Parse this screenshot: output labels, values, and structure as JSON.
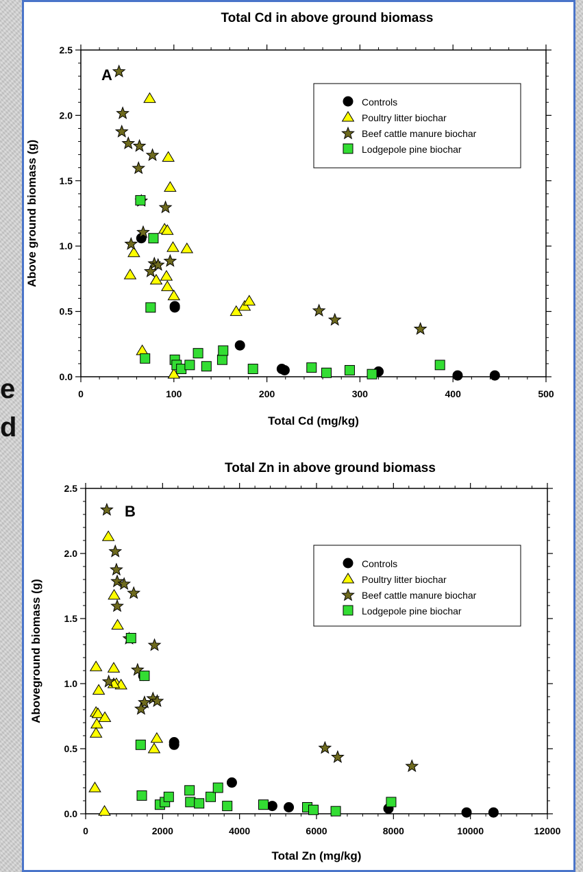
{
  "background": {
    "fragments": [
      "e",
      "d"
    ]
  },
  "legend_entries": [
    "Controls",
    "Poultry litter biochar",
    "Beef cattle manure biochar",
    "Lodgepole pine biochar"
  ],
  "colors": {
    "controls": "#000000",
    "poultry": "#ffff00",
    "beef": "#6e6a1e",
    "pine": "#33dd33",
    "frame": "#4a74c9"
  },
  "chart_data": [
    {
      "type": "scatter",
      "panel_label": "A",
      "title": "Total Cd in above ground biomass",
      "xlabel": "Total Cd (mg/kg)",
      "ylabel": "Above ground biomass (g)",
      "xlim": [
        0,
        500
      ],
      "ylim": [
        0,
        2.5
      ],
      "xticks": [
        0,
        100,
        200,
        300,
        400,
        500
      ],
      "yticks": [
        0.0,
        0.5,
        1.0,
        1.5,
        2.0,
        2.5
      ],
      "xtick_labels": [
        "0",
        "100",
        "200",
        "300",
        "400",
        "500"
      ],
      "ytick_labels": [
        "0.0",
        "0.5",
        "1.0",
        "1.5",
        "2.0",
        "2.5"
      ],
      "legend_position": "top-right",
      "series": [
        {
          "name": "Controls",
          "marker": "circle",
          "color": "#000000",
          "points": [
            [
              65,
              1.06
            ],
            [
              101,
              0.54
            ],
            [
              101,
              0.53
            ],
            [
              171,
              0.24
            ],
            [
              216,
              0.06
            ],
            [
              219,
              0.05
            ],
            [
              320,
              0.04
            ],
            [
              405,
              0.01
            ],
            [
              445,
              0.01
            ]
          ]
        },
        {
          "name": "Poultry litter biochar",
          "marker": "triangle",
          "color": "#ffff00",
          "points": [
            [
              74,
              2.13
            ],
            [
              94,
              1.68
            ],
            [
              96,
              1.45
            ],
            [
              90,
              1.13
            ],
            [
              93,
              1.12
            ],
            [
              99,
              0.99
            ],
            [
              114,
              0.98
            ],
            [
              57,
              0.95
            ],
            [
              53,
              0.78
            ],
            [
              92,
              0.77
            ],
            [
              81,
              0.74
            ],
            [
              93,
              0.69
            ],
            [
              100,
              0.62
            ],
            [
              167,
              0.5
            ],
            [
              176,
              0.54
            ],
            [
              181,
              0.58
            ],
            [
              66,
              0.2
            ],
            [
              100,
              0.02
            ]
          ]
        },
        {
          "name": "Beef cattle manure biochar",
          "marker": "star",
          "color": "#6e6a1e",
          "points": [
            [
              41,
              2.34
            ],
            [
              45,
              2.02
            ],
            [
              44,
              1.88
            ],
            [
              51,
              1.79
            ],
            [
              63,
              1.77
            ],
            [
              77,
              1.7
            ],
            [
              62,
              1.6
            ],
            [
              65,
              1.35
            ],
            [
              91,
              1.3
            ],
            [
              67,
              1.11
            ],
            [
              54,
              1.02
            ],
            [
              96,
              0.89
            ],
            [
              79,
              0.87
            ],
            [
              83,
              0.86
            ],
            [
              75,
              0.81
            ],
            [
              256,
              0.51
            ],
            [
              273,
              0.44
            ],
            [
              365,
              0.37
            ]
          ]
        },
        {
          "name": "Lodgepole pine biochar",
          "marker": "square",
          "color": "#33dd33",
          "points": [
            [
              64,
              1.35
            ],
            [
              78,
              1.06
            ],
            [
              75,
              0.53
            ],
            [
              69,
              0.14
            ],
            [
              101,
              0.13
            ],
            [
              103,
              0.09
            ],
            [
              108,
              0.06
            ],
            [
              117,
              0.09
            ],
            [
              126,
              0.18
            ],
            [
              135,
              0.08
            ],
            [
              152,
              0.13
            ],
            [
              153,
              0.2
            ],
            [
              185,
              0.06
            ],
            [
              248,
              0.07
            ],
            [
              264,
              0.03
            ],
            [
              289,
              0.05
            ],
            [
              313,
              0.02
            ],
            [
              386,
              0.09
            ]
          ]
        }
      ]
    },
    {
      "type": "scatter",
      "panel_label": "B",
      "title": "Total Zn in above ground biomass",
      "xlabel": "Total Zn (mg/kg)",
      "ylabel": "Aboveground biomass (g)",
      "xlim": [
        0,
        12000
      ],
      "ylim": [
        0,
        2.5
      ],
      "xticks": [
        0,
        2000,
        4000,
        6000,
        8000,
        10000,
        12000
      ],
      "yticks": [
        0.0,
        0.5,
        1.0,
        1.5,
        2.0,
        2.5
      ],
      "xtick_labels": [
        "0",
        "2000",
        "4000",
        "6000",
        "8000",
        "10000",
        "12000"
      ],
      "ytick_labels": [
        "0.0",
        "0.5",
        "1.0",
        "1.5",
        "2.0",
        "2.5"
      ],
      "legend_position": "top-right",
      "series": [
        {
          "name": "Controls",
          "marker": "circle",
          "color": "#000000",
          "points": [
            [
              1500,
              1.06
            ],
            [
              2300,
              0.55
            ],
            [
              2300,
              0.53
            ],
            [
              3800,
              0.24
            ],
            [
              4850,
              0.06
            ],
            [
              5280,
              0.05
            ],
            [
              7870,
              0.04
            ],
            [
              9900,
              0.01
            ],
            [
              10600,
              0.01
            ]
          ]
        },
        {
          "name": "Poultry litter biochar",
          "marker": "triangle",
          "color": "#ffff00",
          "points": [
            [
              590,
              2.13
            ],
            [
              830,
              1.45
            ],
            [
              270,
              1.13
            ],
            [
              730,
              1.12
            ],
            [
              800,
              1.0
            ],
            [
              920,
              0.99
            ],
            [
              340,
              0.95
            ],
            [
              730,
              1.0
            ],
            [
              270,
              0.78
            ],
            [
              320,
              0.77
            ],
            [
              500,
              0.74
            ],
            [
              290,
              0.69
            ],
            [
              270,
              0.62
            ],
            [
              1850,
              0.58
            ],
            [
              1780,
              0.5
            ],
            [
              240,
              0.2
            ],
            [
              490,
              0.02
            ],
            [
              740,
              1.68
            ]
          ]
        },
        {
          "name": "Beef cattle manure biochar",
          "marker": "star",
          "color": "#6e6a1e",
          "points": [
            [
              550,
              2.34
            ],
            [
              770,
              2.02
            ],
            [
              800,
              1.88
            ],
            [
              820,
              1.79
            ],
            [
              1000,
              1.77
            ],
            [
              1250,
              1.7
            ],
            [
              820,
              1.6
            ],
            [
              1130,
              1.35
            ],
            [
              1790,
              1.3
            ],
            [
              1350,
              1.11
            ],
            [
              600,
              1.02
            ],
            [
              1750,
              0.89
            ],
            [
              1860,
              0.87
            ],
            [
              1530,
              0.86
            ],
            [
              1440,
              0.81
            ],
            [
              6220,
              0.51
            ],
            [
              6550,
              0.44
            ],
            [
              8480,
              0.37
            ]
          ]
        },
        {
          "name": "Lodgepole pine biochar",
          "marker": "square",
          "color": "#33dd33",
          "points": [
            [
              1180,
              1.35
            ],
            [
              1530,
              1.06
            ],
            [
              1430,
              0.53
            ],
            [
              1460,
              0.14
            ],
            [
              1930,
              0.07
            ],
            [
              2060,
              0.09
            ],
            [
              2160,
              0.13
            ],
            [
              2700,
              0.18
            ],
            [
              2720,
              0.09
            ],
            [
              2950,
              0.08
            ],
            [
              3250,
              0.13
            ],
            [
              3440,
              0.2
            ],
            [
              3680,
              0.06
            ],
            [
              4620,
              0.07
            ],
            [
              5760,
              0.05
            ],
            [
              5920,
              0.03
            ],
            [
              6500,
              0.02
            ],
            [
              7940,
              0.09
            ]
          ]
        }
      ]
    }
  ]
}
